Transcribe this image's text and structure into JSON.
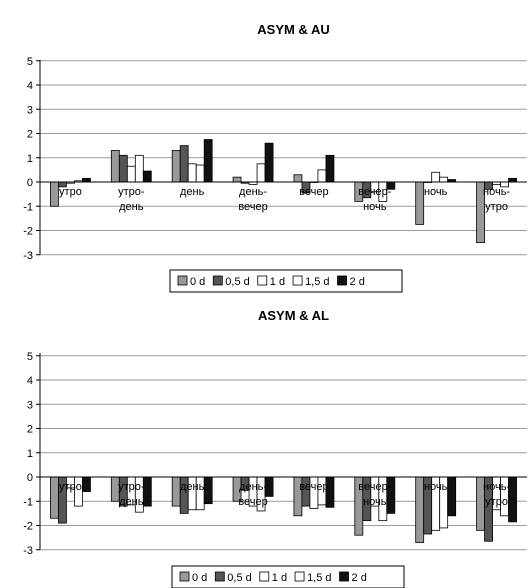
{
  "chart_data": [
    {
      "type": "bar",
      "title": "ASYM & AU",
      "categories": [
        [
          "утро"
        ],
        [
          "утро-",
          "день"
        ],
        [
          "день"
        ],
        [
          "день-",
          "вечер"
        ],
        [
          "вечер"
        ],
        [
          "вечер-",
          "ночь"
        ],
        [
          "ночь"
        ],
        [
          "ночь-",
          "утро"
        ]
      ],
      "ylim": [
        -3,
        5
      ],
      "yticks": [
        "5",
        "4",
        "3",
        "2",
        "1",
        "0",
        "-1",
        "-2",
        "-3"
      ],
      "grid": true,
      "legend_position": "bottom",
      "series": [
        {
          "name": "0 d",
          "color": "#999999",
          "values": [
            -1.0,
            1.3,
            1.3,
            0.2,
            0.3,
            -0.8,
            -1.75,
            -2.5
          ]
        },
        {
          "name": "0,5 d",
          "color": "#555555",
          "values": [
            -0.2,
            1.1,
            1.5,
            -0.05,
            -0.45,
            -0.65,
            0.0,
            -0.3
          ]
        },
        {
          "name": "1 d",
          "color": "#ffffff",
          "values": [
            -0.05,
            0.65,
            0.75,
            -0.1,
            0.0,
            -0.4,
            0.4,
            -0.1
          ]
        },
        {
          "name": "1,5 d",
          "color": "#ffffff",
          "values": [
            0.05,
            1.1,
            0.7,
            0.75,
            0.5,
            -0.8,
            0.2,
            -0.2
          ]
        },
        {
          "name": "2 d",
          "color": "#111111",
          "values": [
            0.15,
            0.45,
            1.75,
            1.6,
            1.1,
            -0.3,
            0.1,
            0.15
          ]
        }
      ]
    },
    {
      "type": "bar",
      "title": "ASYM & AL",
      "categories": [
        [
          "утро"
        ],
        [
          "утро-",
          "день"
        ],
        [
          "день"
        ],
        [
          "день-",
          "вечер"
        ],
        [
          "вечер"
        ],
        [
          "вечер-",
          "ночь"
        ],
        [
          "ночь"
        ],
        [
          "ночь-",
          "утро"
        ]
      ],
      "ylim": [
        -3,
        5
      ],
      "yticks": [
        "5",
        "4",
        "3",
        "2",
        "1",
        "0",
        "-1",
        "-2",
        "-3"
      ],
      "grid": true,
      "legend_position": "bottom",
      "series": [
        {
          "name": "0 d",
          "color": "#999999",
          "values": [
            -1.7,
            -1.0,
            -1.2,
            -1.0,
            -1.6,
            -2.4,
            -2.7,
            -2.2
          ]
        },
        {
          "name": "0,5 d",
          "color": "#555555",
          "values": [
            -1.9,
            -1.2,
            -1.5,
            -0.55,
            -1.2,
            -1.8,
            -2.35,
            -2.65
          ]
        },
        {
          "name": "1 d",
          "color": "#ffffff",
          "values": [
            -0.45,
            -1.15,
            -1.35,
            -1.2,
            -1.3,
            -1.2,
            -2.2,
            -1.35
          ]
        },
        {
          "name": "1,5 d",
          "color": "#ffffff",
          "values": [
            -1.2,
            -1.45,
            -1.35,
            -1.4,
            -1.15,
            -1.8,
            -2.1,
            -1.6
          ]
        },
        {
          "name": "2 d",
          "color": "#111111",
          "values": [
            -0.6,
            -1.2,
            -1.1,
            -0.8,
            -1.25,
            -1.5,
            -1.6,
            -1.85
          ]
        }
      ]
    }
  ]
}
